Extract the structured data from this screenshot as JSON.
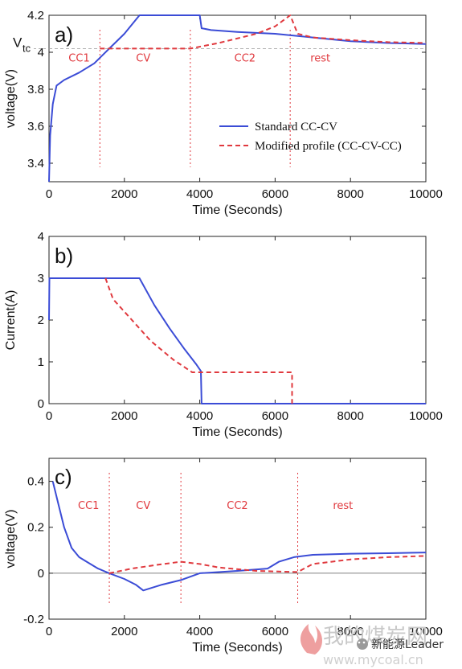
{
  "chart_data": [
    {
      "type": "line",
      "panel_label": "a)",
      "xlabel": "Time (Seconds)",
      "ylabel": "voltage(V)",
      "xlim": [
        0,
        10000
      ],
      "ylim": [
        3.3,
        4.2
      ],
      "xticks": [
        0,
        2000,
        4000,
        6000,
        8000,
        10000
      ],
      "yticks": [
        3.4,
        3.6,
        3.8,
        4,
        4.2
      ],
      "reference_line": {
        "label": "V",
        "label_sub": "tc",
        "y": 4.02
      },
      "phase_labels": [
        {
          "text": "CC1",
          "x": 800,
          "y": 3.95
        },
        {
          "text": "CV",
          "x": 2500,
          "y": 3.95
        },
        {
          "text": "CC2",
          "x": 5200,
          "y": 3.95
        },
        {
          "text": "rest",
          "x": 7200,
          "y": 3.95
        }
      ],
      "phase_lines_x": [
        1350,
        3750,
        6400
      ],
      "legend_position": "center-right",
      "series": [
        {
          "name": "Standard CC-CV",
          "style": "solid",
          "color": "#3b4cd6",
          "points": [
            [
              0,
              3.3
            ],
            [
              30,
              3.55
            ],
            [
              100,
              3.72
            ],
            [
              200,
              3.82
            ],
            [
              400,
              3.85
            ],
            [
              800,
              3.89
            ],
            [
              1200,
              3.94
            ],
            [
              1600,
              4.02
            ],
            [
              2000,
              4.1
            ],
            [
              2400,
              4.2
            ],
            [
              4000,
              4.2
            ],
            [
              4050,
              4.13
            ],
            [
              4300,
              4.12
            ],
            [
              5000,
              4.11
            ],
            [
              6000,
              4.1
            ],
            [
              7000,
              4.08
            ],
            [
              8000,
              4.06
            ],
            [
              9000,
              4.05
            ],
            [
              10000,
              4.045
            ]
          ]
        },
        {
          "name": "Modified profile (CC-CV-CC)",
          "style": "dashed",
          "color": "#e0393e",
          "points": [
            [
              1350,
              4.02
            ],
            [
              2000,
              4.02
            ],
            [
              3000,
              4.02
            ],
            [
              3750,
              4.02
            ],
            [
              4500,
              4.05
            ],
            [
              5500,
              4.1
            ],
            [
              6000,
              4.14
            ],
            [
              6400,
              4.2
            ],
            [
              6600,
              4.1
            ],
            [
              7000,
              4.08
            ],
            [
              8000,
              4.065
            ],
            [
              9000,
              4.055
            ],
            [
              10000,
              4.05
            ]
          ]
        }
      ]
    },
    {
      "type": "line",
      "panel_label": "b)",
      "xlabel": "Time (Seconds)",
      "ylabel": "Current(A)",
      "xlim": [
        0,
        10000
      ],
      "ylim": [
        0,
        4
      ],
      "xticks": [
        0,
        2000,
        4000,
        6000,
        8000,
        10000
      ],
      "yticks": [
        0,
        1,
        2,
        3,
        4
      ],
      "series": [
        {
          "name": "Standard CC-CV",
          "style": "solid",
          "color": "#3b4cd6",
          "points": [
            [
              0,
              2
            ],
            [
              10,
              3
            ],
            [
              2400,
              3
            ],
            [
              2800,
              2.35
            ],
            [
              3200,
              1.8
            ],
            [
              3600,
              1.3
            ],
            [
              3900,
              0.95
            ],
            [
              4030,
              0.78
            ],
            [
              4050,
              0
            ],
            [
              10000,
              0
            ]
          ]
        },
        {
          "name": "Modified profile (CC-CV-CC)",
          "style": "dashed",
          "color": "#e0393e",
          "points": [
            [
              1500,
              3
            ],
            [
              1700,
              2.5
            ],
            [
              2200,
              2
            ],
            [
              2700,
              1.5
            ],
            [
              3300,
              1.05
            ],
            [
              3800,
              0.75
            ],
            [
              6450,
              0.75
            ],
            [
              6450,
              0
            ]
          ]
        }
      ]
    },
    {
      "type": "line",
      "panel_label": "c)",
      "xlabel": "Time (Seconds)",
      "ylabel": "voltage(V)",
      "xlim": [
        0,
        10000
      ],
      "ylim": [
        -0.2,
        0.5
      ],
      "xticks": [
        0,
        2000,
        4000,
        6000,
        8000,
        10000
      ],
      "yticks": [
        -0.2,
        0,
        0.2,
        0.4
      ],
      "zero_line": true,
      "phase_labels": [
        {
          "text": "CC1",
          "x": 1050,
          "y": 0.28
        },
        {
          "text": "CV",
          "x": 2500,
          "y": 0.28
        },
        {
          "text": "CC2",
          "x": 5000,
          "y": 0.28
        },
        {
          "text": "rest",
          "x": 7800,
          "y": 0.28
        }
      ],
      "phase_lines_x": [
        1600,
        3500,
        6600
      ],
      "series": [
        {
          "name": "Standard CC-CV",
          "style": "solid",
          "color": "#3b4cd6",
          "points": [
            [
              100,
              0.4
            ],
            [
              250,
              0.3
            ],
            [
              400,
              0.2
            ],
            [
              600,
              0.11
            ],
            [
              800,
              0.07
            ],
            [
              1000,
              0.05
            ],
            [
              1300,
              0.02
            ],
            [
              1600,
              0
            ],
            [
              2000,
              -0.025
            ],
            [
              2300,
              -0.05
            ],
            [
              2500,
              -0.075
            ],
            [
              3000,
              -0.05
            ],
            [
              3500,
              -0.03
            ],
            [
              4000,
              0
            ],
            [
              5000,
              0.01
            ],
            [
              5800,
              0.02
            ],
            [
              6100,
              0.05
            ],
            [
              6500,
              0.07
            ],
            [
              7000,
              0.08
            ],
            [
              8000,
              0.085
            ],
            [
              9000,
              0.087
            ],
            [
              10000,
              0.09
            ]
          ]
        },
        {
          "name": "Modified profile (CC-CV-CC)",
          "style": "dashed",
          "color": "#e0393e",
          "points": [
            [
              1600,
              0
            ],
            [
              2200,
              0.02
            ],
            [
              2800,
              0.035
            ],
            [
              3500,
              0.05
            ],
            [
              4000,
              0.04
            ],
            [
              4500,
              0.025
            ],
            [
              5500,
              0.01
            ],
            [
              6600,
              0.005
            ],
            [
              7000,
              0.04
            ],
            [
              7500,
              0.05
            ],
            [
              8000,
              0.06
            ],
            [
              9000,
              0.07
            ],
            [
              10000,
              0.075
            ]
          ]
        }
      ]
    }
  ],
  "watermark": {
    "chinese": "我的煤炭网",
    "url": "www.mycoal.cn",
    "wechat": "新能源Leader"
  }
}
